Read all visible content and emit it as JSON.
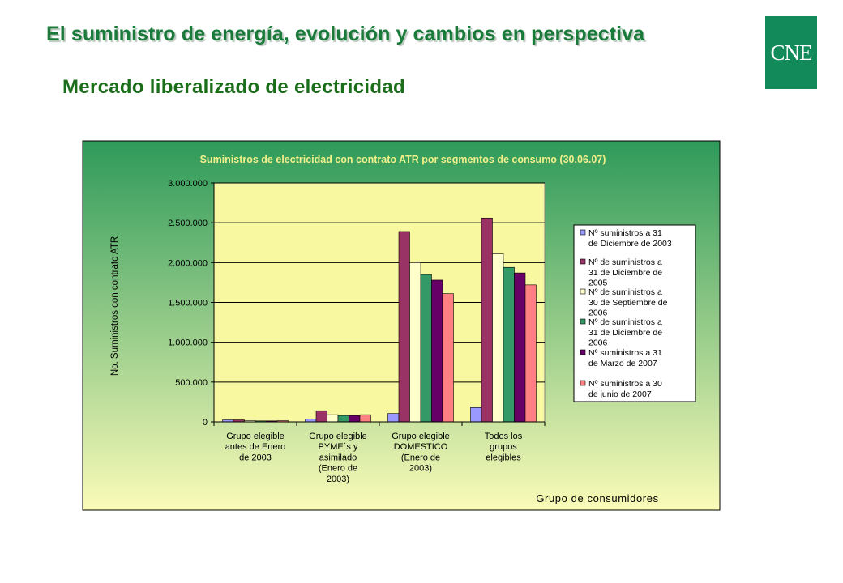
{
  "slide": {
    "title": "El suministro de energía, evolución y cambios en perspectiva",
    "subtitle": "Mercado liberalizado de electricidad",
    "logo_text": "CNE"
  },
  "colors": {
    "title": "#1a7a3a",
    "subtitle": "#1a6e1a",
    "logo_bg": "#128a5a",
    "panel_top": "#2e9a5a",
    "panel_bottom": "#fbfbb8",
    "plot_bg": "#f8f8a0",
    "legend_bg": "#ffffff"
  },
  "chart_data": {
    "type": "bar",
    "title": "Suministros de electricidad con contrato ATR por segmentos de consumo  (30.06.07)",
    "xlabel": "Grupo de consumidores",
    "ylabel": "No. Suministros con contrato ATR",
    "ylim": [
      0,
      3000000
    ],
    "yticks": [
      0,
      500000,
      1000000,
      1500000,
      2000000,
      2500000,
      3000000
    ],
    "ytick_labels": [
      "0",
      "500.000",
      "1.000.000",
      "1.500.000",
      "2.000.000",
      "2.500.000",
      "3.000.000"
    ],
    "grid": true,
    "legend_position": "right",
    "categories": [
      [
        "Grupo elegible",
        "antes de Enero",
        "de 2003"
      ],
      [
        "Grupo elegible",
        "PYME´s y",
        "asimilado",
        "(Enero de",
        "2003)"
      ],
      [
        "Grupo elegible",
        "DOMESTICO",
        "(Enero de",
        "2003)"
      ],
      [
        "Todos los",
        "grupos",
        "elegibles"
      ]
    ],
    "series": [
      {
        "name": "Nº suministros a 31 de Diciembre de 2003",
        "legend_lines": [
          "Nº suministros a 31",
          "de Diciembre de 2003"
        ],
        "color": "#9999ff",
        "values": [
          25000,
          35000,
          105000,
          180000
        ]
      },
      {
        "name": "Nº de suministros a 31 de Diciembre de 2005",
        "legend_lines": [
          "Nº de suministros a",
          "31 de Diciembre de",
          "2005"
        ],
        "color": "#993366",
        "values": [
          25000,
          140000,
          2390000,
          2560000
        ]
      },
      {
        "name": "Nº de suministros a 30 de Septiembre de 2006",
        "legend_lines": [
          "Nº de suministros a",
          "30 de Septiembre de",
          "2006"
        ],
        "color": "#ffffcc",
        "values": [
          15000,
          90000,
          2000000,
          2110000
        ]
      },
      {
        "name": "Nº de suministros a 31 de Diciembre de 2006",
        "legend_lines": [
          "Nº de suministros a",
          "31 de Diciembre de",
          "2006"
        ],
        "color": "#339966",
        "values": [
          12000,
          80000,
          1850000,
          1940000
        ]
      },
      {
        "name": "Nº suministros a 31 de Marzo de 2007",
        "legend_lines": [
          "Nº suministros a 31",
          "de Marzo de 2007"
        ],
        "color": "#660066",
        "values": [
          12000,
          80000,
          1780000,
          1870000
        ]
      },
      {
        "name": "Nº suministros a 30 de junio de 2007",
        "legend_lines": [
          "Nº suministros a 30",
          "de junio de 2007"
        ],
        "color": "#ff8080",
        "values": [
          15000,
          90000,
          1610000,
          1720000
        ]
      }
    ]
  }
}
